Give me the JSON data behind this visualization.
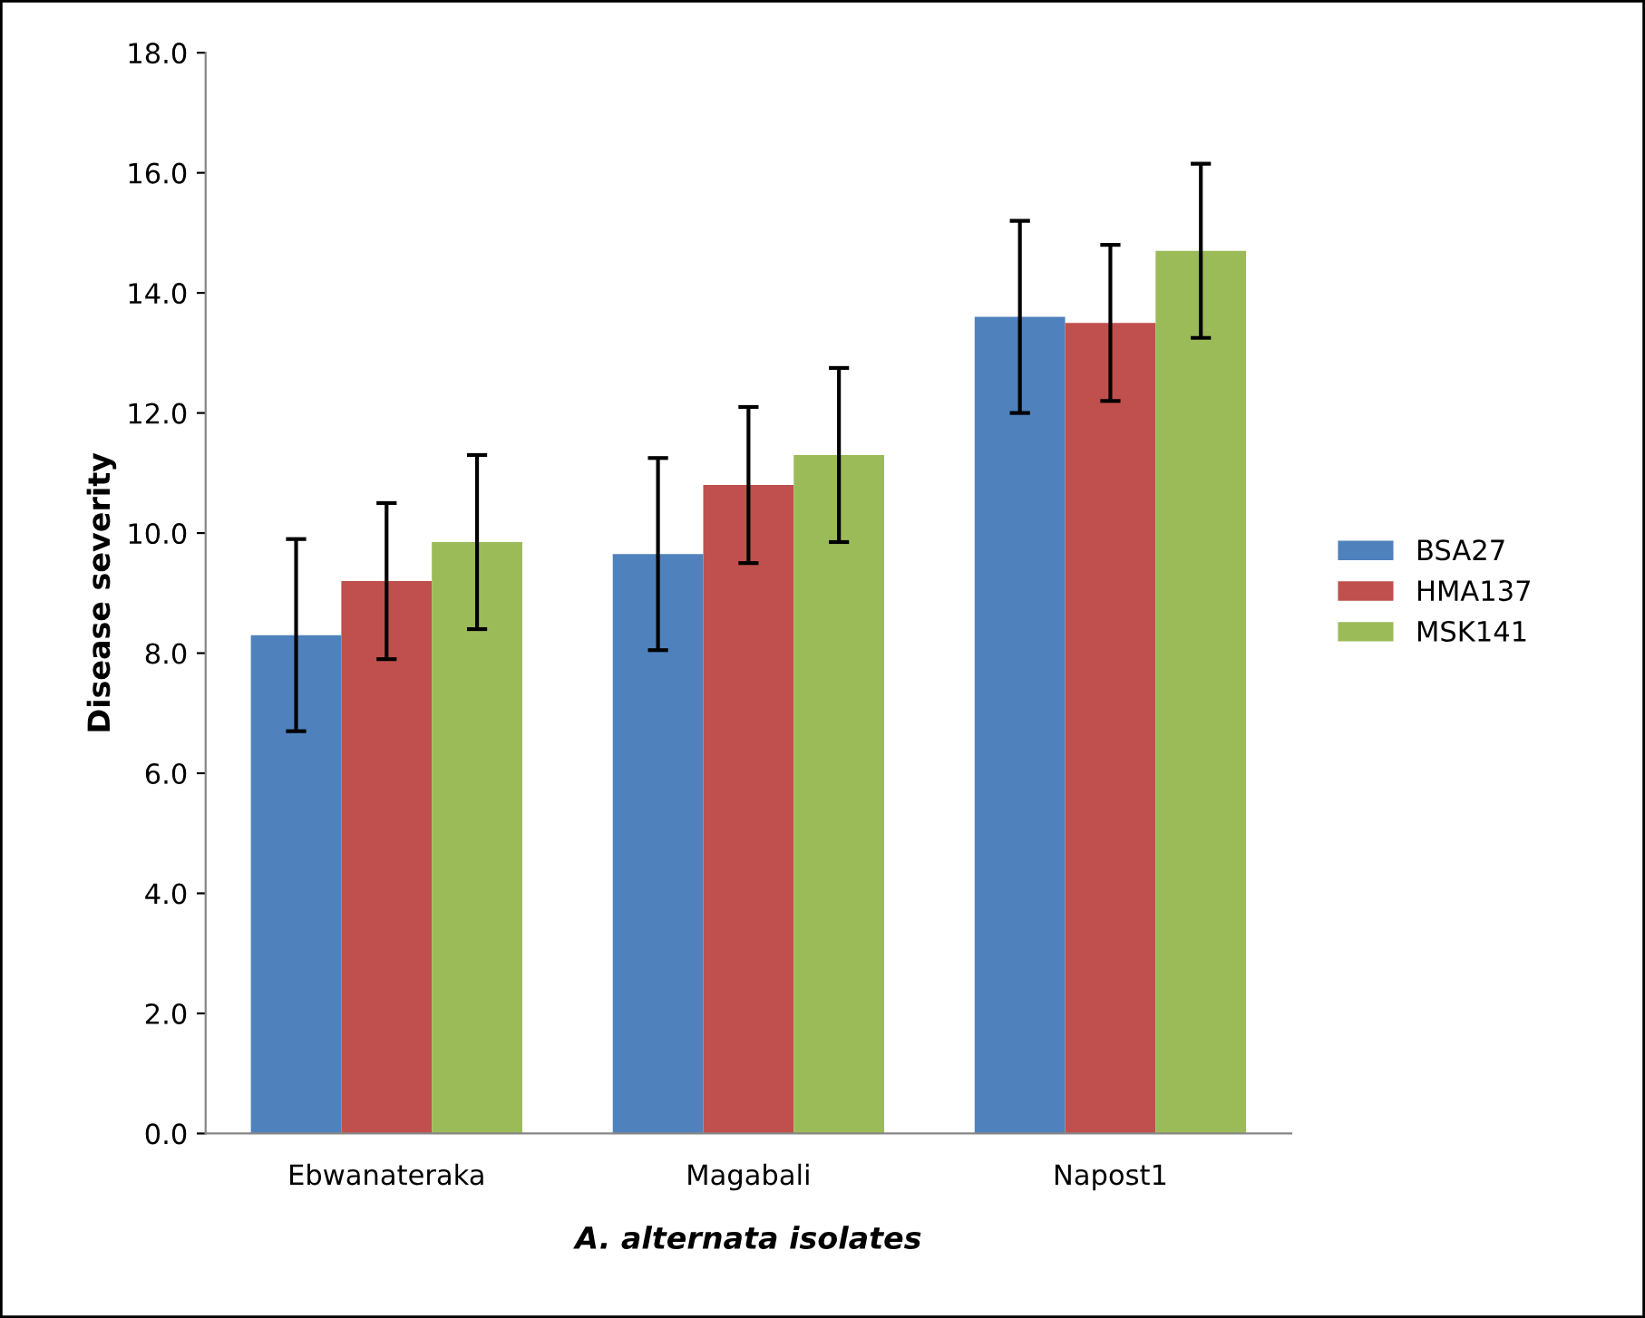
{
  "chart_data": {
    "type": "bar",
    "xlabel": "A. alternata isolates",
    "ylabel": "Disease severity",
    "categories": [
      "Ebwanateraka",
      "Magabali",
      "Napost1"
    ],
    "series": [
      {
        "name": "BSA27",
        "color": "#4f81bd",
        "values": [
          8.3,
          9.65,
          13.6
        ],
        "errors": [
          1.6,
          1.6,
          1.6
        ]
      },
      {
        "name": "HMA137",
        "color": "#c0504d",
        "values": [
          9.2,
          10.8,
          13.5
        ],
        "errors": [
          1.3,
          1.3,
          1.3
        ]
      },
      {
        "name": "MSK141",
        "color": "#9bbb59",
        "values": [
          9.85,
          11.3,
          14.7
        ],
        "errors": [
          1.45,
          1.45,
          1.45
        ]
      }
    ],
    "ylim": [
      0,
      18
    ],
    "yticks": [
      {
        "value": 0,
        "label": "0.0"
      },
      {
        "value": 2,
        "label": "2.0"
      },
      {
        "value": 4,
        "label": "4.0"
      },
      {
        "value": 6,
        "label": "6.0"
      },
      {
        "value": 8,
        "label": "8.0"
      },
      {
        "value": 10,
        "label": "10.0"
      },
      {
        "value": 12,
        "label": "12.0"
      },
      {
        "value": 14,
        "label": "14.0"
      },
      {
        "value": 16,
        "label": "16.0"
      },
      {
        "value": 18,
        "label": "18.0"
      }
    ],
    "grid": false,
    "legend": "right"
  }
}
